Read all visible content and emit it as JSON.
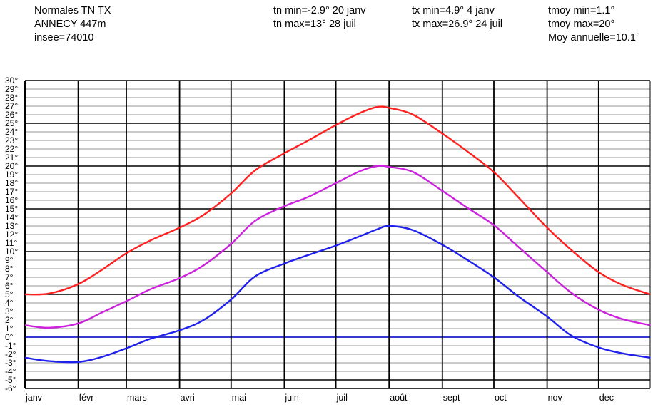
{
  "header": {
    "title_lines": [
      "Normales TN TX",
      "ANNECY 447m",
      "insee=74010"
    ],
    "tn_lines": [
      "tn min=-2.9° 20 janv",
      "tn max=13° 28 juil"
    ],
    "tx_lines": [
      "tx min=4.9° 4 janv",
      "tx max=26.9° 24 juil"
    ],
    "tmoy_lines": [
      "tmoy min=1.1°",
      "tmoy max=20°",
      "Moy annuelle=10.1°"
    ]
  },
  "colors": {
    "tx": "#ff2020",
    "tmoy": "#cc22dd",
    "tn": "#2020ee",
    "zero_line": "#2020ee",
    "major_grid": "#000000",
    "minor_grid": "#aaaaaa"
  },
  "chart_data": {
    "type": "line",
    "x_unit": "day of year",
    "months": [
      "janv",
      "févr",
      "mars",
      "avri",
      "mai",
      "juin",
      "juil",
      "août",
      "sept",
      "oct",
      "nov",
      "dec"
    ],
    "ylim": [
      -6,
      30
    ],
    "ytick_labels": [
      "-6°",
      "-5°",
      "-4°",
      "-3°",
      "-2°",
      "-1°",
      "0°",
      "1°",
      "2°",
      "3°",
      "4°",
      "5°",
      "6°",
      "7°",
      "8°",
      "9°",
      "10°",
      "11°",
      "12°",
      "13°",
      "14°",
      "15°",
      "16°",
      "17°",
      "18°",
      "19°",
      "20°",
      "21°",
      "22°",
      "23°",
      "24°",
      "25°",
      "26°",
      "27°",
      "28°",
      "29°",
      "30°"
    ],
    "major_y": [
      -5,
      0,
      5,
      10,
      15,
      20,
      25,
      30
    ],
    "grid": true,
    "series": [
      {
        "key": "tx",
        "color": "#ff2020",
        "x": [
          1,
          15,
          32,
          46,
          60,
          74,
          91,
          105,
          121,
          135,
          152,
          166,
          182,
          196,
          206,
          213,
          227,
          244,
          258,
          274,
          288,
          305,
          319,
          335,
          349,
          365
        ],
        "y": [
          5.0,
          5.1,
          6.2,
          7.9,
          9.8,
          11.3,
          12.8,
          14.3,
          16.8,
          19.5,
          21.5,
          23.0,
          24.8,
          26.2,
          26.9,
          26.8,
          26.0,
          23.8,
          21.8,
          19.3,
          16.4,
          12.8,
          10.2,
          7.6,
          6.1,
          5.0
        ]
      },
      {
        "key": "tmoy",
        "color": "#cc22dd",
        "x": [
          1,
          15,
          32,
          46,
          60,
          74,
          91,
          105,
          121,
          135,
          152,
          166,
          182,
          196,
          206,
          213,
          227,
          244,
          258,
          274,
          288,
          305,
          319,
          335,
          349,
          365
        ],
        "y": [
          1.4,
          1.1,
          1.6,
          2.9,
          4.2,
          5.6,
          6.9,
          8.4,
          10.9,
          13.6,
          15.3,
          16.4,
          18.0,
          19.4,
          20.0,
          19.9,
          19.3,
          17.1,
          15.2,
          13.1,
          10.6,
          7.6,
          5.2,
          3.2,
          2.1,
          1.4
        ]
      },
      {
        "key": "tn",
        "color": "#2020ee",
        "x": [
          1,
          15,
          32,
          46,
          60,
          74,
          91,
          105,
          121,
          135,
          152,
          166,
          182,
          196,
          206,
          213,
          227,
          244,
          258,
          274,
          288,
          305,
          319,
          335,
          349,
          365
        ],
        "y": [
          -2.4,
          -2.8,
          -2.9,
          -2.3,
          -1.3,
          -0.2,
          0.8,
          2.0,
          4.4,
          7.1,
          8.6,
          9.6,
          10.7,
          11.8,
          12.6,
          13.0,
          12.5,
          10.8,
          9.1,
          7.0,
          4.8,
          2.4,
          0.2,
          -1.2,
          -1.9,
          -2.4
        ]
      }
    ]
  }
}
